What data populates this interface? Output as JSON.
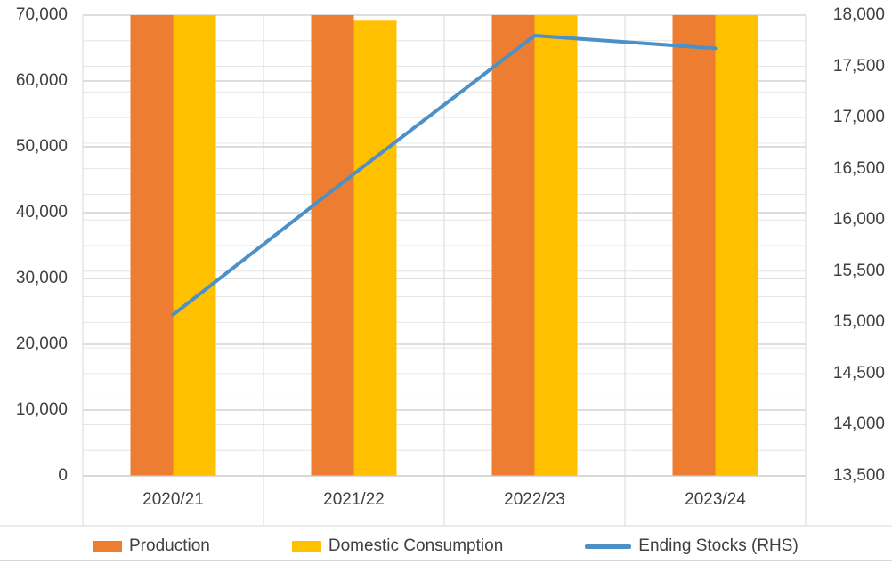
{
  "chart_data": {
    "type": "combo_bar_line",
    "title": "",
    "categories": [
      "2020/21",
      "2021/22",
      "2022/23",
      "2023/24"
    ],
    "series": [
      {
        "name": "Production",
        "chart_type": "bar",
        "axis": "left",
        "color": "#ED7D31",
        "values": [
          70000,
          70000,
          70000,
          70000
        ]
      },
      {
        "name": "Domestic Consumption",
        "chart_type": "bar",
        "axis": "left",
        "color": "#FFC000",
        "values": [
          70000,
          69150,
          70000,
          70000
        ]
      },
      {
        "name": "Ending Stocks (RHS)",
        "chart_type": "line",
        "axis": "right",
        "color": "#4C90C8",
        "values": [
          15075,
          16450,
          17800,
          17675
        ]
      }
    ],
    "left_axis": {
      "min": 0,
      "max": 70000,
      "major_step": 10000,
      "tick_labels": [
        "70,000",
        "60,000",
        "50,000",
        "40,000",
        "30,000",
        "20,000",
        "10,000",
        "0"
      ]
    },
    "right_axis": {
      "min": 13500,
      "max": 18000,
      "label_step": 500,
      "minor_grid_step": 250,
      "tick_labels": [
        "18,000",
        "17,500",
        "17,000",
        "16,500",
        "16,000",
        "15,500",
        "15,000",
        "14,500",
        "14,000",
        "13,500"
      ]
    },
    "legend": {
      "position": "bottom",
      "items": [
        {
          "label": "Production",
          "swatch": "bar",
          "color": "#ED7D31"
        },
        {
          "label": "Domestic Consumption",
          "swatch": "bar",
          "color": "#FFC000"
        },
        {
          "label": "Ending Stocks (RHS)",
          "swatch": "line",
          "color": "#4C90C8"
        }
      ]
    },
    "grid": {
      "horizontal": true,
      "vertical": true
    },
    "note": "Bar tops reach the left-axis maximum and are visually clipped at 70,000"
  },
  "colors": {
    "text": "#404040",
    "grid_minor": "#E6E6E6",
    "grid_major": "#C9C9C9",
    "grid_vertical": "#DADADA",
    "separator": "#D9D9D9",
    "background": "#FFFFFF"
  }
}
